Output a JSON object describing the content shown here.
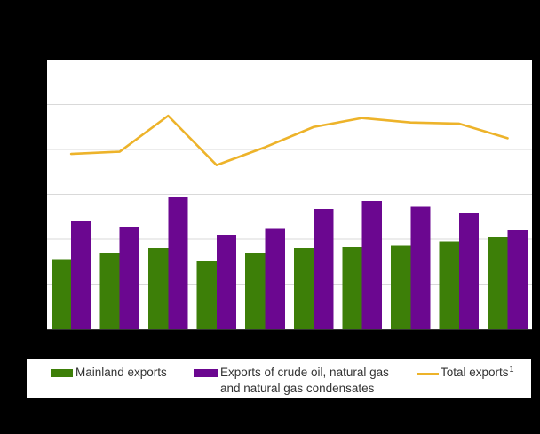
{
  "canvas": {
    "background_color": "#000000",
    "panel_background_color": "#ffffff"
  },
  "legend": {
    "background_color": "#ffffff",
    "text_color": "#333333",
    "items": [
      {
        "label": "Mainland exports",
        "swatch_type": "rect",
        "swatch_color": "#3d7f08"
      },
      {
        "label_line1": "Exports of crude oil, natural gas",
        "label_line2": "and natural gas condensates",
        "swatch_type": "rect",
        "swatch_color": "#6b0790"
      },
      {
        "label": "Total exports",
        "superscript": "1",
        "swatch_type": "line",
        "swatch_color": "#edb32a"
      }
    ]
  },
  "chart_data": {
    "type": "bar",
    "subtype": "grouped-bars-with-line-overlay",
    "n_groups": 10,
    "x_tick_labels_visible": false,
    "y_tick_labels_visible": false,
    "title_visible": false,
    "grid": true,
    "gridline_color": "#d9d9d9",
    "gridline_step": 20,
    "ylim": [
      0,
      120
    ],
    "legend_position": "bottom",
    "series": [
      {
        "name": "Mainland exports",
        "type": "bar",
        "color": "#3d7f08",
        "values": [
          31,
          34,
          36,
          30.5,
          34,
          36,
          36.5,
          37,
          39,
          41
        ]
      },
      {
        "name": "Exports of crude oil, natural gas and natural gas condensates",
        "type": "bar",
        "color": "#6b0790",
        "values": [
          48,
          45.5,
          59,
          42,
          45,
          53.5,
          57,
          54.5,
          51.5,
          44
        ]
      },
      {
        "name": "Total exports (1)",
        "type": "line",
        "color": "#edb32a",
        "values": [
          78,
          79,
          95,
          73,
          81,
          90,
          94,
          92,
          91.5,
          85
        ]
      }
    ]
  }
}
